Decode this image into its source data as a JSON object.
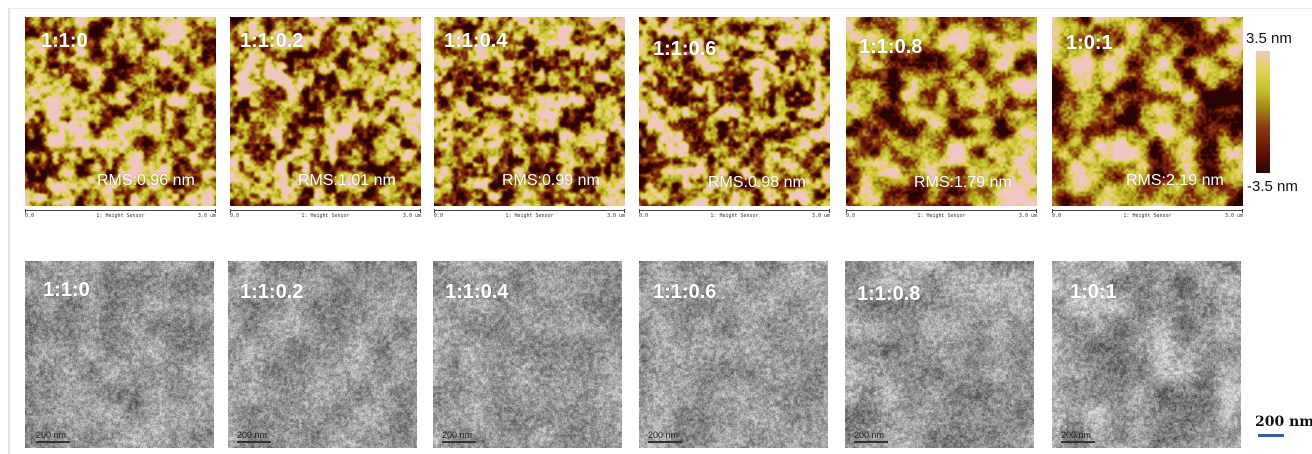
{
  "afm_panels": [
    {
      "label": "1:1:0",
      "rms": "RMS:0.96 nm",
      "axis_start": "0.0",
      "axis_mid": "1: Height Sensor",
      "axis_end": "3.0 um"
    },
    {
      "label": "1:1:0.2",
      "rms": "RMS:1.01 nm",
      "axis_start": "0.0",
      "axis_mid": "1: Height Sensor",
      "axis_end": "3.0 um"
    },
    {
      "label": "1:1:0.4",
      "rms": "RMS:0.99 nm",
      "axis_start": "0.0",
      "axis_mid": "1: Height Sensor",
      "axis_end": "3.0 um"
    },
    {
      "label": "1:1:0.6",
      "rms": "RMS:0.98 nm",
      "axis_start": "0.0",
      "axis_mid": "1: Height Sensor",
      "axis_end": "3.0 um"
    },
    {
      "label": "1:1:0.8",
      "rms": "RMS:1.79 nm",
      "axis_start": "0.0",
      "axis_mid": "1: Height Sensor",
      "axis_end": "3.0 um"
    },
    {
      "label": "1:0:1",
      "rms": "RMS:2.19 nm",
      "axis_start": "0.0",
      "axis_mid": "1: Height Sensor",
      "axis_end": "3.0 um"
    }
  ],
  "tem_panels": [
    {
      "label": "1:1:0",
      "scale": "200 nm"
    },
    {
      "label": "1:1:0.2",
      "scale": "200 nm"
    },
    {
      "label": "1:1:0.4",
      "scale": "200 nm"
    },
    {
      "label": "1:1:0.6",
      "scale": "200 nm"
    },
    {
      "label": "1:1:0.8",
      "scale": "200 nm"
    },
    {
      "label": "1:0:1",
      "scale": "200 nm"
    }
  ],
  "colorbar": {
    "max_label": "3.5 nm",
    "min_label": "-3.5 nm",
    "colors": [
      "#f0c6c2",
      "#e6d260",
      "#c2c22a",
      "#a68a1a",
      "#8a3a10",
      "#6a1608",
      "#2a0402"
    ]
  },
  "scale_bar": {
    "label": "200 nm",
    "color": "#2b5faa"
  }
}
